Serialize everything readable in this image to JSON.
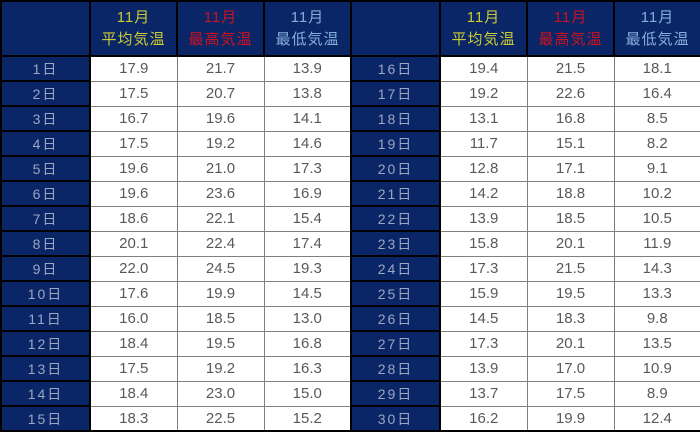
{
  "colors": {
    "header_bg": "#0a2667",
    "avg_header_text": "#cccc33",
    "max_header_text": "#cc1122",
    "min_header_text": "#86aedd",
    "day_text": "#9ba6c0",
    "value_text": "#595959",
    "grid_line": "#808080",
    "frame_line": "#000000",
    "cell_bg": "#ffffff"
  },
  "header": {
    "month": "11月",
    "avg_label": "平均気温",
    "max_label": "最高気温",
    "min_label": "最低気温"
  },
  "tables": {
    "left": {
      "rows": [
        {
          "day": "1日",
          "avg": "17.9",
          "max": "21.7",
          "min": "13.9"
        },
        {
          "day": "2日",
          "avg": "17.5",
          "max": "20.7",
          "min": "13.8"
        },
        {
          "day": "3日",
          "avg": "16.7",
          "max": "19.6",
          "min": "14.1"
        },
        {
          "day": "4日",
          "avg": "17.5",
          "max": "19.2",
          "min": "14.6"
        },
        {
          "day": "5日",
          "avg": "19.6",
          "max": "21.0",
          "min": "17.3"
        },
        {
          "day": "6日",
          "avg": "19.6",
          "max": "23.6",
          "min": "16.9"
        },
        {
          "day": "7日",
          "avg": "18.6",
          "max": "22.1",
          "min": "15.4"
        },
        {
          "day": "8日",
          "avg": "20.1",
          "max": "22.4",
          "min": "17.4"
        },
        {
          "day": "9日",
          "avg": "22.0",
          "max": "24.5",
          "min": "19.3"
        },
        {
          "day": "10日",
          "avg": "17.6",
          "max": "19.9",
          "min": "14.5"
        },
        {
          "day": "11日",
          "avg": "16.0",
          "max": "18.5",
          "min": "13.0"
        },
        {
          "day": "12日",
          "avg": "18.4",
          "max": "19.5",
          "min": "16.8"
        },
        {
          "day": "13日",
          "avg": "17.5",
          "max": "19.2",
          "min": "16.3"
        },
        {
          "day": "14日",
          "avg": "18.4",
          "max": "23.0",
          "min": "15.0"
        },
        {
          "day": "15日",
          "avg": "18.3",
          "max": "22.5",
          "min": "15.2"
        }
      ]
    },
    "right": {
      "rows": [
        {
          "day": "16日",
          "avg": "19.4",
          "max": "21.5",
          "min": "18.1"
        },
        {
          "day": "17日",
          "avg": "19.2",
          "max": "22.6",
          "min": "16.4"
        },
        {
          "day": "18日",
          "avg": "13.1",
          "max": "16.8",
          "min": "8.5"
        },
        {
          "day": "19日",
          "avg": "11.7",
          "max": "15.1",
          "min": "8.2"
        },
        {
          "day": "20日",
          "avg": "12.8",
          "max": "17.1",
          "min": "9.1"
        },
        {
          "day": "21日",
          "avg": "14.2",
          "max": "18.8",
          "min": "10.2"
        },
        {
          "day": "22日",
          "avg": "13.9",
          "max": "18.5",
          "min": "10.5"
        },
        {
          "day": "23日",
          "avg": "15.8",
          "max": "20.1",
          "min": "11.9"
        },
        {
          "day": "24日",
          "avg": "17.3",
          "max": "21.5",
          "min": "14.3"
        },
        {
          "day": "25日",
          "avg": "15.9",
          "max": "19.5",
          "min": "13.3"
        },
        {
          "day": "26日",
          "avg": "14.5",
          "max": "18.3",
          "min": "9.8"
        },
        {
          "day": "27日",
          "avg": "17.3",
          "max": "20.1",
          "min": "13.5"
        },
        {
          "day": "28日",
          "avg": "13.9",
          "max": "17.0",
          "min": "10.9"
        },
        {
          "day": "29日",
          "avg": "13.7",
          "max": "17.5",
          "min": "8.9"
        },
        {
          "day": "30日",
          "avg": "16.2",
          "max": "19.9",
          "min": "12.4"
        }
      ]
    }
  },
  "chart_data": {
    "type": "table",
    "title": "11月 日別気温",
    "columns": [
      "日",
      "11月 平均気温",
      "11月 最高気温",
      "11月 最低気温"
    ],
    "days": [
      1,
      2,
      3,
      4,
      5,
      6,
      7,
      8,
      9,
      10,
      11,
      12,
      13,
      14,
      15,
      16,
      17,
      18,
      19,
      20,
      21,
      22,
      23,
      24,
      25,
      26,
      27,
      28,
      29,
      30
    ],
    "series": [
      {
        "name": "平均気温",
        "values": [
          17.9,
          17.5,
          16.7,
          17.5,
          19.6,
          19.6,
          18.6,
          20.1,
          22.0,
          17.6,
          16.0,
          18.4,
          17.5,
          18.4,
          18.3,
          19.4,
          19.2,
          13.1,
          11.7,
          12.8,
          14.2,
          13.9,
          15.8,
          17.3,
          15.9,
          14.5,
          17.3,
          13.9,
          13.7,
          16.2
        ]
      },
      {
        "name": "最高気温",
        "values": [
          21.7,
          20.7,
          19.6,
          19.2,
          21.0,
          23.6,
          22.1,
          22.4,
          24.5,
          19.9,
          18.5,
          19.5,
          19.2,
          23.0,
          22.5,
          21.5,
          22.6,
          16.8,
          15.1,
          17.1,
          18.8,
          18.5,
          20.1,
          21.5,
          19.5,
          18.3,
          20.1,
          17.0,
          17.5,
          19.9
        ]
      },
      {
        "name": "最低気温",
        "values": [
          13.9,
          13.8,
          14.1,
          14.6,
          17.3,
          16.9,
          15.4,
          17.4,
          19.3,
          14.5,
          13.0,
          16.8,
          16.3,
          15.0,
          15.2,
          18.1,
          16.4,
          8.5,
          8.2,
          9.1,
          10.2,
          10.5,
          11.9,
          14.3,
          13.3,
          9.8,
          13.5,
          10.9,
          8.9,
          12.4
        ]
      }
    ],
    "layout": {
      "split": "two side-by-side tables, days 1-15 left, days 16-30 right"
    }
  }
}
